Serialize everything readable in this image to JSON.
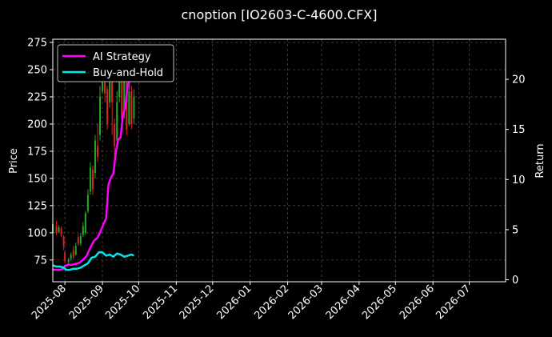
{
  "chart_data": {
    "type": "line",
    "title": "cnoption [IO2603-C-4600.CFX]",
    "ylabel": "Price",
    "y2label": "Return",
    "legend_position": "top-left",
    "grid": true,
    "x_ticks": [
      "2025-08",
      "2025-09",
      "2025-10",
      "2025-11",
      "2025-12",
      "2026-01",
      "2026-02",
      "2026-03",
      "2026-04",
      "2026-05",
      "2026-06",
      "2026-07"
    ],
    "xlim": [
      "2025-07-22",
      "2026-07-31"
    ],
    "y_ticks": [
      75,
      100,
      125,
      150,
      175,
      200,
      225,
      250,
      275
    ],
    "ylim": [
      55,
      278
    ],
    "y2_ticks": [
      0,
      5,
      10,
      15,
      20
    ],
    "y2lim": [
      -0.2,
      24
    ],
    "candles": [
      {
        "x": "2025-07-22",
        "open": 100,
        "close": 108,
        "high": 110,
        "low": 97
      },
      {
        "x": "2025-07-25",
        "open": 106,
        "close": 100,
        "high": 111,
        "low": 98
      },
      {
        "x": "2025-07-27",
        "open": 101,
        "close": 105,
        "high": 107,
        "low": 100
      },
      {
        "x": "2025-07-29",
        "open": 104,
        "close": 98,
        "high": 106,
        "low": 96
      },
      {
        "x": "2025-07-31",
        "open": 96,
        "close": 88,
        "high": 98,
        "low": 84
      },
      {
        "x": "2025-08-01",
        "open": 82,
        "close": 74,
        "high": 84,
        "low": 72
      },
      {
        "x": "2025-08-04",
        "open": 73,
        "close": 75,
        "high": 77,
        "low": 70
      },
      {
        "x": "2025-08-06",
        "open": 76,
        "close": 80,
        "high": 82,
        "low": 74
      },
      {
        "x": "2025-08-08",
        "open": 84,
        "close": 78,
        "high": 88,
        "low": 76
      },
      {
        "x": "2025-08-10",
        "open": 80,
        "close": 88,
        "high": 91,
        "low": 79
      },
      {
        "x": "2025-08-12",
        "open": 96,
        "close": 90,
        "high": 99,
        "low": 88
      },
      {
        "x": "2025-08-14",
        "open": 90,
        "close": 97,
        "high": 100,
        "low": 88
      },
      {
        "x": "2025-08-16",
        "open": 98,
        "close": 106,
        "high": 110,
        "low": 96
      },
      {
        "x": "2025-08-18",
        "open": 100,
        "close": 118,
        "high": 120,
        "low": 98
      },
      {
        "x": "2025-08-20",
        "open": 120,
        "close": 135,
        "high": 140,
        "low": 118
      },
      {
        "x": "2025-08-22",
        "open": 138,
        "close": 160,
        "high": 165,
        "low": 135
      },
      {
        "x": "2025-08-24",
        "open": 158,
        "close": 140,
        "high": 162,
        "low": 135
      },
      {
        "x": "2025-08-26",
        "open": 155,
        "close": 185,
        "high": 190,
        "low": 150
      },
      {
        "x": "2025-08-28",
        "open": 180,
        "close": 170,
        "high": 200,
        "low": 165
      },
      {
        "x": "2025-08-30",
        "open": 190,
        "close": 225,
        "high": 235,
        "low": 185
      },
      {
        "x": "2025-09-01",
        "open": 230,
        "close": 250,
        "high": 260,
        "low": 228
      },
      {
        "x": "2025-09-03",
        "open": 245,
        "close": 228,
        "high": 252,
        "low": 220
      },
      {
        "x": "2025-09-05",
        "open": 232,
        "close": 200,
        "high": 235,
        "low": 195
      },
      {
        "x": "2025-09-07",
        "open": 220,
        "close": 250,
        "high": 262,
        "low": 215
      },
      {
        "x": "2025-09-09",
        "open": 245,
        "close": 220,
        "high": 250,
        "low": 190
      },
      {
        "x": "2025-09-11",
        "open": 200,
        "close": 180,
        "high": 205,
        "low": 170
      },
      {
        "x": "2025-09-13",
        "open": 185,
        "close": 220,
        "high": 230,
        "low": 180
      },
      {
        "x": "2025-09-15",
        "open": 225,
        "close": 245,
        "high": 255,
        "low": 220
      },
      {
        "x": "2025-09-17",
        "open": 240,
        "close": 205,
        "high": 245,
        "low": 195
      },
      {
        "x": "2025-09-19",
        "open": 210,
        "close": 240,
        "high": 250,
        "low": 205
      },
      {
        "x": "2025-09-21",
        "open": 238,
        "close": 195,
        "high": 242,
        "low": 190
      },
      {
        "x": "2025-09-23",
        "open": 200,
        "close": 230,
        "high": 245,
        "low": 198
      },
      {
        "x": "2025-09-25",
        "open": 230,
        "close": 200,
        "high": 235,
        "low": 195
      },
      {
        "x": "2025-09-27",
        "open": 205,
        "close": 225,
        "high": 232,
        "low": 200
      }
    ],
    "series": [
      {
        "name": "AI Strategy",
        "color": "#ff00ff",
        "axis": "right",
        "x": [
          "2025-07-22",
          "2025-07-25",
          "2025-07-28",
          "2025-07-31",
          "2025-08-01",
          "2025-08-04",
          "2025-08-07",
          "2025-08-10",
          "2025-08-13",
          "2025-08-16",
          "2025-08-19",
          "2025-08-22",
          "2025-08-25",
          "2025-08-28",
          "2025-08-31",
          "2025-09-02",
          "2025-09-04",
          "2025-09-06",
          "2025-09-08",
          "2025-09-10",
          "2025-09-12",
          "2025-09-14",
          "2025-09-16",
          "2025-09-18",
          "2025-09-20",
          "2025-09-22",
          "2025-09-24",
          "2025-09-26",
          "2025-09-27"
        ],
        "values": [
          1.0,
          1.0,
          1.0,
          1.1,
          1.4,
          1.5,
          1.5,
          1.6,
          1.7,
          2.0,
          2.4,
          3.2,
          3.9,
          4.2,
          5.0,
          5.6,
          6.1,
          9.5,
          10.2,
          10.6,
          12.7,
          14.0,
          14.2,
          16.5,
          17.3,
          19.5,
          19.9,
          20.1,
          20.3
        ]
      },
      {
        "name": "Buy-and-Hold",
        "color": "#00e5ee",
        "axis": "left",
        "x": [
          "2025-07-22",
          "2025-07-25",
          "2025-07-28",
          "2025-07-31",
          "2025-08-02",
          "2025-08-05",
          "2025-08-08",
          "2025-08-11",
          "2025-08-14",
          "2025-08-17",
          "2025-08-20",
          "2025-08-23",
          "2025-08-26",
          "2025-08-29",
          "2025-09-01",
          "2025-09-04",
          "2025-09-07",
          "2025-09-10",
          "2025-09-13",
          "2025-09-16",
          "2025-09-19",
          "2025-09-22",
          "2025-09-25",
          "2025-09-27"
        ],
        "values": [
          70,
          69,
          69,
          68,
          66,
          66,
          67,
          67,
          68,
          70,
          72,
          77,
          78,
          82,
          82,
          79,
          80,
          78,
          81,
          80,
          78,
          79,
          80,
          79
        ]
      }
    ],
    "candle_up_color": "#22aa22",
    "candle_down_color": "#dd2222"
  }
}
